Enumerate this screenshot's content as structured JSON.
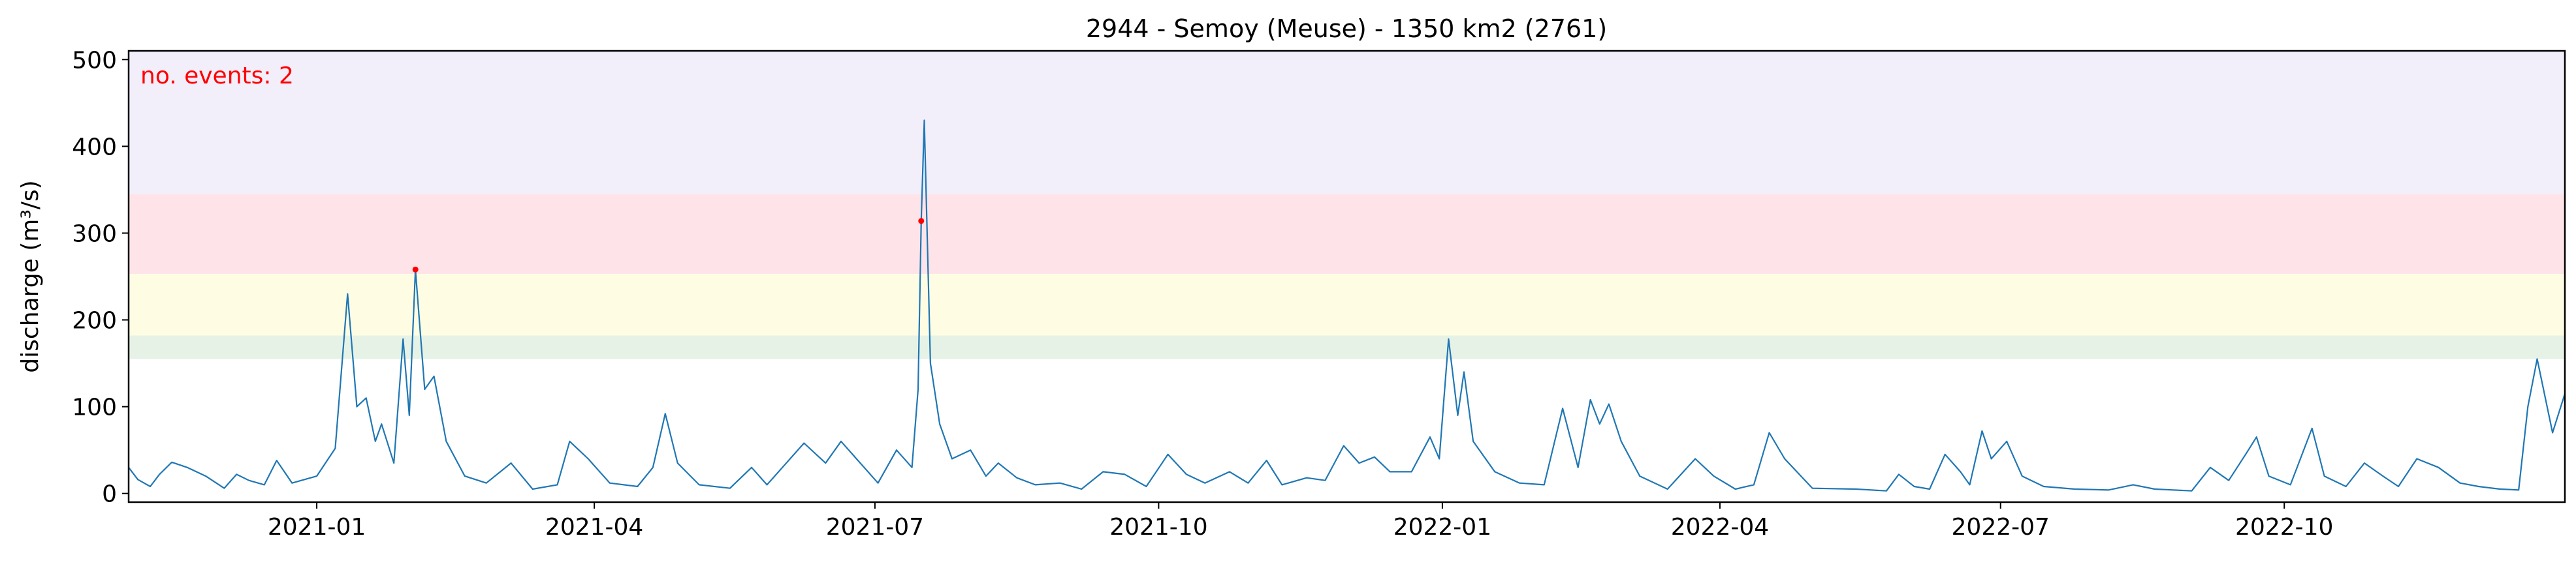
{
  "chart_data": {
    "type": "line",
    "title": "2944 - Semoy (Meuse) - 1350 km2 (2761)",
    "ylabel": "discharge (m³/s)",
    "xlabel": "",
    "ylim": [
      -10,
      510
    ],
    "xlim": [
      "2020-11-01",
      "2022-12-31"
    ],
    "grid": false,
    "x_ticks": [
      {
        "date": "2021-01-01",
        "label": "2021-01"
      },
      {
        "date": "2021-04-01",
        "label": "2021-04"
      },
      {
        "date": "2021-07-01",
        "label": "2021-07"
      },
      {
        "date": "2021-10-01",
        "label": "2021-10"
      },
      {
        "date": "2022-01-01",
        "label": "2022-01"
      },
      {
        "date": "2022-04-01",
        "label": "2022-04"
      },
      {
        "date": "2022-07-01",
        "label": "2022-07"
      },
      {
        "date": "2022-10-01",
        "label": "2022-10"
      }
    ],
    "y_ticks": [
      0,
      100,
      200,
      300,
      400,
      500
    ],
    "bands": [
      {
        "from": 155,
        "to": 182,
        "color": "#e6f2e6"
      },
      {
        "from": 182,
        "to": 253,
        "color": "#fefde4"
      },
      {
        "from": 253,
        "to": 345,
        "color": "#fee4e8"
      },
      {
        "from": 345,
        "to": 510,
        "color": "#f2eefa"
      }
    ],
    "annotation": {
      "text": "no. events: 2",
      "color": "#ff0000"
    },
    "events": [
      {
        "x": "2021-02-02",
        "y": 258
      },
      {
        "x": "2021-07-16",
        "y": 314
      }
    ],
    "series": [
      {
        "color": "#1f77b4",
        "points": [
          [
            "2020-11-01",
            30
          ],
          [
            "2020-11-04",
            16
          ],
          [
            "2020-11-08",
            8
          ],
          [
            "2020-11-11",
            22
          ],
          [
            "2020-11-15",
            36
          ],
          [
            "2020-11-20",
            30
          ],
          [
            "2020-11-26",
            20
          ],
          [
            "2020-12-02",
            6
          ],
          [
            "2020-12-06",
            22
          ],
          [
            "2020-12-10",
            15
          ],
          [
            "2020-12-15",
            10
          ],
          [
            "2020-12-19",
            38
          ],
          [
            "2020-12-24",
            12
          ],
          [
            "2021-01-01",
            20
          ],
          [
            "2021-01-07",
            52
          ],
          [
            "2021-01-11",
            230
          ],
          [
            "2021-01-14",
            100
          ],
          [
            "2021-01-17",
            110
          ],
          [
            "2021-01-20",
            60
          ],
          [
            "2021-01-22",
            80
          ],
          [
            "2021-01-26",
            35
          ],
          [
            "2021-01-29",
            178
          ],
          [
            "2021-01-31",
            90
          ],
          [
            "2021-02-02",
            258
          ],
          [
            "2021-02-05",
            120
          ],
          [
            "2021-02-08",
            135
          ],
          [
            "2021-02-12",
            60
          ],
          [
            "2021-02-18",
            20
          ],
          [
            "2021-02-25",
            12
          ],
          [
            "2021-03-05",
            35
          ],
          [
            "2021-03-12",
            5
          ],
          [
            "2021-03-20",
            10
          ],
          [
            "2021-03-24",
            60
          ],
          [
            "2021-03-30",
            40
          ],
          [
            "2021-04-06",
            12
          ],
          [
            "2021-04-15",
            8
          ],
          [
            "2021-04-20",
            30
          ],
          [
            "2021-04-24",
            92
          ],
          [
            "2021-04-28",
            35
          ],
          [
            "2021-05-05",
            10
          ],
          [
            "2021-05-15",
            6
          ],
          [
            "2021-05-22",
            30
          ],
          [
            "2021-05-27",
            10
          ],
          [
            "2021-06-01",
            30
          ],
          [
            "2021-06-08",
            58
          ],
          [
            "2021-06-15",
            35
          ],
          [
            "2021-06-20",
            60
          ],
          [
            "2021-06-25",
            40
          ],
          [
            "2021-07-02",
            12
          ],
          [
            "2021-07-08",
            50
          ],
          [
            "2021-07-13",
            30
          ],
          [
            "2021-07-15",
            120
          ],
          [
            "2021-07-16",
            314
          ],
          [
            "2021-07-17",
            430
          ],
          [
            "2021-07-19",
            150
          ],
          [
            "2021-07-22",
            80
          ],
          [
            "2021-07-26",
            40
          ],
          [
            "2021-08-01",
            50
          ],
          [
            "2021-08-06",
            20
          ],
          [
            "2021-08-10",
            35
          ],
          [
            "2021-08-16",
            18
          ],
          [
            "2021-08-22",
            10
          ],
          [
            "2021-08-30",
            12
          ],
          [
            "2021-09-06",
            5
          ],
          [
            "2021-09-13",
            25
          ],
          [
            "2021-09-20",
            22
          ],
          [
            "2021-09-27",
            8
          ],
          [
            "2021-10-04",
            45
          ],
          [
            "2021-10-10",
            22
          ],
          [
            "2021-10-16",
            12
          ],
          [
            "2021-10-24",
            25
          ],
          [
            "2021-10-30",
            12
          ],
          [
            "2021-11-05",
            38
          ],
          [
            "2021-11-10",
            10
          ],
          [
            "2021-11-18",
            18
          ],
          [
            "2021-11-24",
            15
          ],
          [
            "2021-11-30",
            55
          ],
          [
            "2021-12-05",
            35
          ],
          [
            "2021-12-10",
            42
          ],
          [
            "2021-12-15",
            25
          ],
          [
            "2021-12-22",
            25
          ],
          [
            "2021-12-28",
            65
          ],
          [
            "2021-12-31",
            40
          ],
          [
            "2022-01-03",
            178
          ],
          [
            "2022-01-06",
            90
          ],
          [
            "2022-01-08",
            140
          ],
          [
            "2022-01-11",
            60
          ],
          [
            "2022-01-18",
            25
          ],
          [
            "2022-01-26",
            12
          ],
          [
            "2022-02-03",
            10
          ],
          [
            "2022-02-09",
            98
          ],
          [
            "2022-02-14",
            30
          ],
          [
            "2022-02-18",
            108
          ],
          [
            "2022-02-21",
            80
          ],
          [
            "2022-02-24",
            103
          ],
          [
            "2022-02-28",
            60
          ],
          [
            "2022-03-06",
            20
          ],
          [
            "2022-03-15",
            5
          ],
          [
            "2022-03-24",
            40
          ],
          [
            "2022-03-30",
            20
          ],
          [
            "2022-04-06",
            5
          ],
          [
            "2022-04-12",
            10
          ],
          [
            "2022-04-17",
            70
          ],
          [
            "2022-04-22",
            40
          ],
          [
            "2022-05-01",
            6
          ],
          [
            "2022-05-15",
            5
          ],
          [
            "2022-05-25",
            3
          ],
          [
            "2022-05-29",
            22
          ],
          [
            "2022-06-03",
            8
          ],
          [
            "2022-06-08",
            5
          ],
          [
            "2022-06-13",
            45
          ],
          [
            "2022-06-18",
            25
          ],
          [
            "2022-06-21",
            10
          ],
          [
            "2022-06-25",
            72
          ],
          [
            "2022-06-28",
            40
          ],
          [
            "2022-07-03",
            60
          ],
          [
            "2022-07-08",
            20
          ],
          [
            "2022-07-15",
            8
          ],
          [
            "2022-07-25",
            5
          ],
          [
            "2022-08-05",
            4
          ],
          [
            "2022-08-13",
            10
          ],
          [
            "2022-08-20",
            5
          ],
          [
            "2022-09-01",
            3
          ],
          [
            "2022-09-07",
            30
          ],
          [
            "2022-09-13",
            15
          ],
          [
            "2022-09-19",
            48
          ],
          [
            "2022-09-22",
            65
          ],
          [
            "2022-09-26",
            20
          ],
          [
            "2022-10-03",
            10
          ],
          [
            "2022-10-10",
            75
          ],
          [
            "2022-10-14",
            20
          ],
          [
            "2022-10-21",
            8
          ],
          [
            "2022-10-27",
            35
          ],
          [
            "2022-11-02",
            20
          ],
          [
            "2022-11-07",
            8
          ],
          [
            "2022-11-13",
            40
          ],
          [
            "2022-11-20",
            30
          ],
          [
            "2022-11-27",
            12
          ],
          [
            "2022-12-03",
            8
          ],
          [
            "2022-12-10",
            5
          ],
          [
            "2022-12-16",
            4
          ],
          [
            "2022-12-19",
            100
          ],
          [
            "2022-12-22",
            155
          ],
          [
            "2022-12-27",
            70
          ],
          [
            "2022-12-31",
            115
          ]
        ]
      }
    ]
  }
}
